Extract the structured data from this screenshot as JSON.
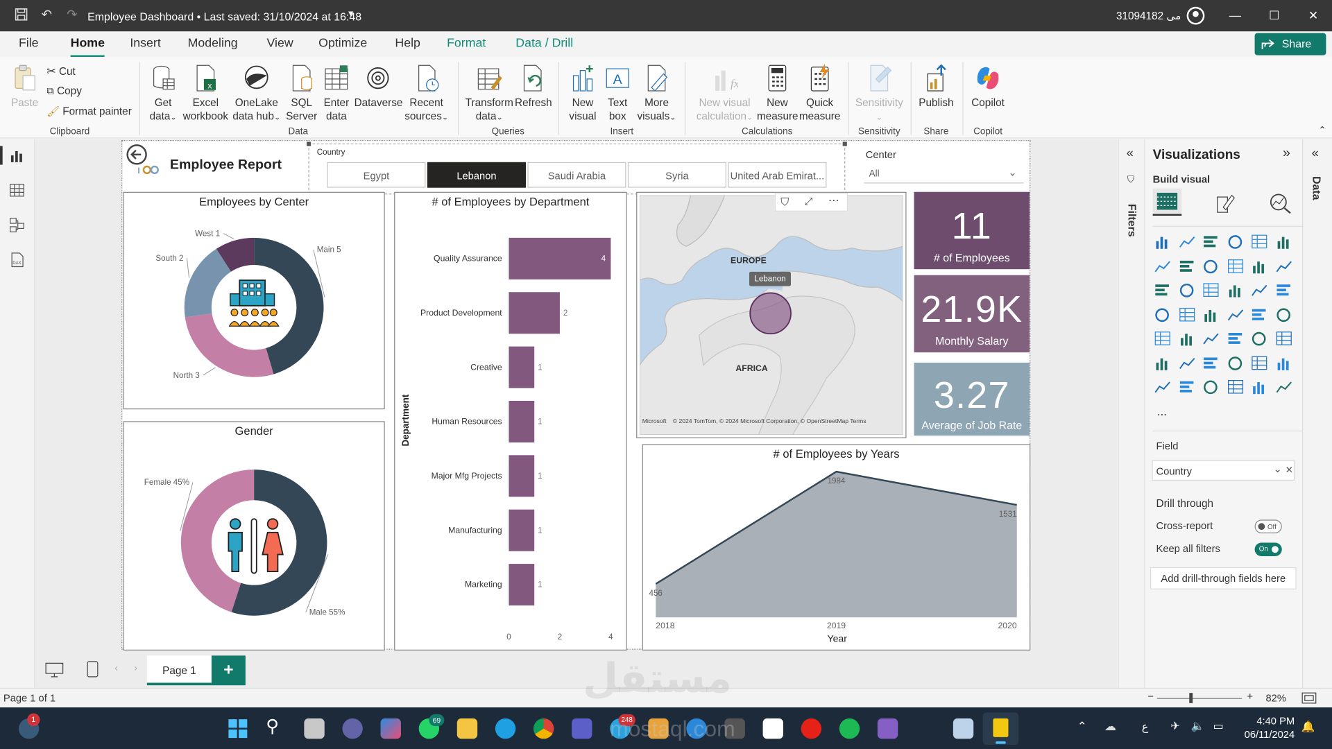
{
  "titlebar": {
    "title": "Employee Dashboard • Last saved: 31/10/2024 at 16:48",
    "user": "31094182 مى"
  },
  "menu": {
    "items": [
      "File",
      "Home",
      "Insert",
      "Modeling",
      "View",
      "Optimize",
      "Help",
      "Format",
      "Data / Drill"
    ],
    "share": "Share"
  },
  "ribbon": {
    "clipboard": {
      "paste": "Paste",
      "cut": "Cut",
      "copy": "Copy",
      "format_painter": "Format painter",
      "label": "Clipboard"
    },
    "data": {
      "get_data": [
        "Get",
        "data"
      ],
      "excel": [
        "Excel",
        "workbook"
      ],
      "onelake": [
        "OneLake",
        "data hub"
      ],
      "sql": [
        "SQL",
        "Server"
      ],
      "enter": [
        "Enter",
        "data"
      ],
      "dataverse": "Dataverse",
      "recent": [
        "Recent",
        "sources"
      ],
      "label": "Data"
    },
    "queries": {
      "transform": [
        "Transform",
        "data"
      ],
      "refresh": "Refresh",
      "label": "Queries"
    },
    "insert": {
      "new_visual": [
        "New",
        "visual"
      ],
      "text_box": [
        "Text",
        "box"
      ],
      "more_visuals": [
        "More",
        "visuals"
      ],
      "label": "Insert"
    },
    "calculations": {
      "new_visual_calc": [
        "New visual",
        "calculation"
      ],
      "new_measure": [
        "New",
        "measure"
      ],
      "quick_measure": [
        "Quick",
        "measure"
      ],
      "label": "Calculations"
    },
    "sensitivity": {
      "btn": "Sensitivity",
      "label": "Sensitivity"
    },
    "share": {
      "publish": "Publish",
      "label": "Share"
    },
    "copilot": {
      "btn": "Copilot",
      "label": "Copilot"
    }
  },
  "report": {
    "title": "Employee Report",
    "slicer": {
      "label": "Country",
      "options": [
        "Egypt",
        "Lebanon",
        "Saudi Arabia",
        "Syria",
        "United Arab Emirat..."
      ],
      "selected": "Lebanon"
    },
    "center": {
      "label": "Center",
      "value": "All"
    },
    "kpis": [
      {
        "value": "11",
        "label": "# of Employees",
        "color": "#6d4c6e"
      },
      {
        "value": "21.9K",
        "label": "Monthly Salary",
        "color": "#82617f"
      },
      {
        "value": "3.27",
        "label": "Average of Job Rate",
        "color": "#8ea5b4"
      }
    ],
    "map": {
      "labels": [
        "EUROPE",
        "AFRICA"
      ],
      "tooltip": "Lebanon",
      "attribution": "© 2024 TomTom, © 2024 Microsoft Corporation, © OpenStreetMap Terms",
      "brand": "Microsoft"
    }
  },
  "chart_data": [
    {
      "type": "pie",
      "title": "Employees by Center",
      "categories": [
        "Main",
        "North",
        "South",
        "West"
      ],
      "values": [
        5,
        3,
        2,
        1
      ],
      "labels": [
        "Main 5",
        "North 3",
        "South 2",
        "West 1"
      ],
      "colors": [
        "#344756",
        "#c37fa5",
        "#7793ae",
        "#5b3a5d"
      ]
    },
    {
      "type": "pie",
      "title": "Gender",
      "categories": [
        "Male",
        "Female"
      ],
      "values": [
        55,
        45
      ],
      "labels": [
        "Male 55%",
        "Female 45%"
      ],
      "colors": [
        "#344756",
        "#c37fa5"
      ]
    },
    {
      "type": "bar",
      "title": "# of Employees by Department",
      "orientation": "horizontal",
      "categories": [
        "Quality Assurance",
        "Product Development",
        "Creative",
        "Human Resources",
        "Major Mfg Projects",
        "Manufacturing",
        "Marketing"
      ],
      "values": [
        4,
        2,
        1,
        1,
        1,
        1,
        1
      ],
      "ylabel": "Department",
      "xlim": [
        0,
        4
      ],
      "xticks": [
        "0",
        "2",
        "4"
      ],
      "color": "#82587f"
    },
    {
      "type": "area",
      "title": "# of Employees by Years",
      "x": [
        2018,
        2019,
        2020
      ],
      "values": [
        456,
        1984,
        1531
      ],
      "xlabel": "Year",
      "xticks": [
        "2018",
        "2019",
        "2020"
      ],
      "color": "#a9b0b8"
    }
  ],
  "panes": {
    "filters": "Filters",
    "visualizations": "Visualizations",
    "build_visual": "Build visual",
    "data": "Data",
    "field_label": "Field",
    "field_value": "Country",
    "drill_through": "Drill through",
    "cross_report": "Cross-report",
    "cross_report_state": "Off",
    "keep_filters": "Keep all filters",
    "keep_filters_state": "On",
    "add_drill": "Add drill-through fields here",
    "more": "..."
  },
  "pages": {
    "tabs": [
      "Page 1"
    ],
    "add": "+"
  },
  "status": {
    "page": "Page 1 of 1",
    "zoom": "82%"
  },
  "taskbar": {
    "time": "4:40 PM",
    "date": "06/11/2024",
    "lang": "ع",
    "badges": [
      "1",
      "69",
      "248"
    ],
    "watermark": "مستقل",
    "watermark_latin": "mostaql.com"
  }
}
